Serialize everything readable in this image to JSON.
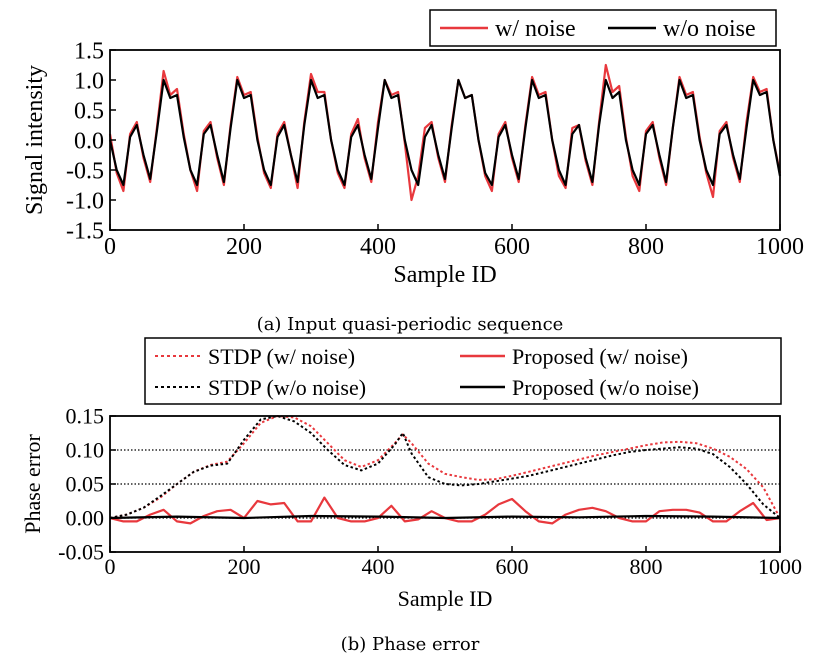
{
  "chart_data": [
    {
      "type": "line",
      "caption": "(a) Input quasi-periodic sequence",
      "xlabel": "Sample ID",
      "ylabel": "Signal intensity",
      "xlim": [
        0,
        1000
      ],
      "ylim": [
        -1.5,
        1.5
      ],
      "xticks": [
        0,
        200,
        400,
        600,
        800,
        1000
      ],
      "yticks": [
        -1.5,
        -1.0,
        -0.5,
        0.0,
        0.5,
        1.0,
        1.5
      ],
      "ytick_labels": [
        "-1.5",
        "-1.0",
        "-0.5",
        "0.0",
        "0.5",
        "1.0",
        "1.5"
      ],
      "grid": false,
      "legend_position": "top-right",
      "series": [
        {
          "name": "w/ noise",
          "color": "#e8383d",
          "style": "solid",
          "x": [
            0,
            10,
            20,
            30,
            40,
            50,
            60,
            70,
            80,
            90,
            100,
            110,
            120,
            130,
            140,
            150,
            160,
            170,
            180,
            190,
            200,
            210,
            220,
            230,
            240,
            250,
            260,
            270,
            280,
            290,
            300,
            310,
            320,
            330,
            340,
            350,
            360,
            370,
            380,
            390,
            400,
            410,
            420,
            430,
            440,
            450,
            460,
            470,
            480,
            490,
            500,
            510,
            520,
            530,
            540,
            550,
            560,
            570,
            580,
            590,
            600,
            610,
            620,
            630,
            640,
            650,
            660,
            670,
            680,
            690,
            700,
            710,
            720,
            730,
            740,
            750,
            760,
            770,
            780,
            790,
            800,
            810,
            820,
            830,
            840,
            850,
            860,
            870,
            880,
            890,
            900,
            910,
            920,
            930,
            940,
            950,
            960,
            970,
            980,
            990,
            1000
          ],
          "y": [
            0.1,
            -0.55,
            -0.85,
            0.1,
            0.3,
            -0.3,
            -0.7,
            0.2,
            1.15,
            0.75,
            0.85,
            0.1,
            -0.5,
            -0.85,
            0.15,
            0.3,
            -0.3,
            -0.75,
            0.25,
            1.05,
            0.75,
            0.8,
            0.05,
            -0.55,
            -0.8,
            0.1,
            0.3,
            -0.25,
            -0.8,
            0.3,
            1.1,
            0.8,
            0.8,
            0.0,
            -0.55,
            -0.8,
            0.1,
            0.35,
            -0.3,
            -0.7,
            0.3,
            1.0,
            0.75,
            0.8,
            -0.05,
            -1.0,
            -0.6,
            0.2,
            0.3,
            -0.3,
            -0.7,
            0.25,
            1.0,
            0.7,
            0.75,
            0.0,
            -0.6,
            -0.85,
            0.1,
            0.3,
            -0.3,
            -0.7,
            0.25,
            1.05,
            0.75,
            0.8,
            0.0,
            -0.6,
            -0.8,
            0.2,
            0.25,
            -0.35,
            -0.75,
            0.3,
            1.25,
            0.8,
            0.9,
            0.05,
            -0.6,
            -0.85,
            0.15,
            0.3,
            -0.3,
            -0.75,
            0.2,
            1.05,
            0.75,
            0.8,
            0.05,
            -0.55,
            -0.95,
            0.15,
            0.3,
            -0.3,
            -0.7,
            0.3,
            1.05,
            0.8,
            0.85,
            0.0,
            -0.55
          ]
        },
        {
          "name": "w/o noise",
          "color": "#000000",
          "style": "solid",
          "x": [
            0,
            10,
            20,
            30,
            40,
            50,
            60,
            70,
            80,
            90,
            100,
            110,
            120,
            130,
            140,
            150,
            160,
            170,
            180,
            190,
            200,
            210,
            220,
            230,
            240,
            250,
            260,
            270,
            280,
            290,
            300,
            310,
            320,
            330,
            340,
            350,
            360,
            370,
            380,
            390,
            400,
            410,
            420,
            430,
            440,
            450,
            460,
            470,
            480,
            490,
            500,
            510,
            520,
            530,
            540,
            550,
            560,
            570,
            580,
            590,
            600,
            610,
            620,
            630,
            640,
            650,
            660,
            670,
            680,
            690,
            700,
            710,
            720,
            730,
            740,
            750,
            760,
            770,
            780,
            790,
            800,
            810,
            820,
            830,
            840,
            850,
            860,
            870,
            880,
            890,
            900,
            910,
            920,
            930,
            940,
            950,
            960,
            970,
            980,
            990,
            1000
          ],
          "y": [
            0.0,
            -0.5,
            -0.75,
            0.05,
            0.25,
            -0.25,
            -0.65,
            0.15,
            1.0,
            0.7,
            0.75,
            0.05,
            -0.5,
            -0.75,
            0.1,
            0.25,
            -0.25,
            -0.7,
            0.2,
            1.0,
            0.7,
            0.75,
            0.0,
            -0.5,
            -0.75,
            0.05,
            0.25,
            -0.25,
            -0.7,
            0.25,
            1.0,
            0.7,
            0.75,
            0.0,
            -0.5,
            -0.75,
            0.05,
            0.25,
            -0.25,
            -0.65,
            0.2,
            1.0,
            0.7,
            0.75,
            0.0,
            -0.5,
            -0.75,
            0.05,
            0.25,
            -0.25,
            -0.65,
            0.2,
            1.0,
            0.7,
            0.75,
            0.0,
            -0.55,
            -0.75,
            0.05,
            0.25,
            -0.25,
            -0.65,
            0.2,
            1.0,
            0.7,
            0.75,
            0.0,
            -0.5,
            -0.75,
            0.1,
            0.25,
            -0.3,
            -0.7,
            0.25,
            1.0,
            0.7,
            0.8,
            0.0,
            -0.5,
            -0.75,
            0.1,
            0.25,
            -0.25,
            -0.7,
            0.2,
            1.0,
            0.7,
            0.75,
            0.0,
            -0.5,
            -0.75,
            0.1,
            0.25,
            -0.25,
            -0.65,
            0.2,
            1.0,
            0.75,
            0.8,
            0.0,
            -0.6
          ]
        }
      ]
    },
    {
      "type": "line",
      "caption": "(b) Phase error",
      "xlabel": "Sample ID",
      "ylabel": "Phase error",
      "xlim": [
        0,
        1000
      ],
      "ylim": [
        -0.05,
        0.15
      ],
      "xticks": [
        0,
        200,
        400,
        600,
        800,
        1000
      ],
      "yticks": [
        -0.05,
        0.0,
        0.05,
        0.1,
        0.15
      ],
      "ytick_labels": [
        "-0.05",
        "0.00",
        "0.05",
        "0.10",
        "0.15"
      ],
      "grid": true,
      "legend_position": "top, outside plot",
      "series": [
        {
          "name": "STDP (w/ noise)",
          "color": "#e8383d",
          "style": "dotted",
          "x": [
            0,
            25,
            50,
            75,
            100,
            125,
            150,
            175,
            200,
            225,
            250,
            275,
            300,
            325,
            350,
            375,
            400,
            425,
            437,
            450,
            475,
            500,
            525,
            550,
            575,
            600,
            625,
            650,
            675,
            700,
            725,
            750,
            775,
            800,
            825,
            850,
            875,
            900,
            925,
            950,
            975,
            1000
          ],
          "y": [
            0.0,
            0.005,
            0.015,
            0.03,
            0.05,
            0.068,
            0.078,
            0.083,
            0.11,
            0.14,
            0.15,
            0.148,
            0.135,
            0.11,
            0.085,
            0.075,
            0.085,
            0.11,
            0.123,
            0.11,
            0.08,
            0.065,
            0.06,
            0.056,
            0.057,
            0.062,
            0.068,
            0.074,
            0.08,
            0.086,
            0.092,
            0.097,
            0.102,
            0.107,
            0.111,
            0.112,
            0.11,
            0.102,
            0.09,
            0.072,
            0.045,
            0.0
          ]
        },
        {
          "name": "STDP (w/o noise)",
          "color": "#000000",
          "style": "dotted",
          "x": [
            0,
            25,
            50,
            75,
            100,
            125,
            150,
            175,
            200,
            225,
            250,
            275,
            300,
            325,
            350,
            375,
            400,
            425,
            437,
            450,
            475,
            500,
            525,
            550,
            575,
            600,
            625,
            650,
            675,
            700,
            725,
            750,
            775,
            800,
            825,
            850,
            875,
            900,
            925,
            950,
            975,
            1000
          ],
          "y": [
            0.0,
            0.005,
            0.015,
            0.032,
            0.05,
            0.068,
            0.077,
            0.08,
            0.115,
            0.145,
            0.15,
            0.142,
            0.125,
            0.1,
            0.078,
            0.07,
            0.08,
            0.108,
            0.125,
            0.095,
            0.06,
            0.05,
            0.048,
            0.05,
            0.054,
            0.058,
            0.062,
            0.068,
            0.074,
            0.08,
            0.086,
            0.092,
            0.097,
            0.1,
            0.102,
            0.104,
            0.102,
            0.094,
            0.075,
            0.05,
            0.02,
            0.0
          ]
        },
        {
          "name": "Proposed (w/ noise)",
          "color": "#e8383d",
          "style": "solid",
          "x": [
            0,
            20,
            40,
            60,
            80,
            100,
            120,
            140,
            160,
            180,
            200,
            220,
            240,
            260,
            280,
            300,
            320,
            340,
            360,
            380,
            400,
            420,
            440,
            460,
            480,
            500,
            520,
            540,
            560,
            580,
            600,
            620,
            640,
            660,
            680,
            700,
            720,
            740,
            760,
            780,
            800,
            820,
            840,
            860,
            880,
            900,
            920,
            940,
            960,
            980,
            1000
          ],
          "y": [
            0.0,
            -0.005,
            -0.005,
            0.005,
            0.012,
            -0.005,
            -0.008,
            0.003,
            0.01,
            0.012,
            0.0,
            0.025,
            0.02,
            0.022,
            -0.005,
            -0.005,
            0.03,
            0.0,
            -0.005,
            -0.005,
            0.0,
            0.018,
            -0.005,
            -0.002,
            0.01,
            0.0,
            -0.005,
            -0.005,
            0.005,
            0.02,
            0.028,
            0.01,
            -0.005,
            -0.008,
            0.005,
            0.012,
            0.015,
            0.01,
            0.0,
            -0.005,
            -0.005,
            0.01,
            0.012,
            0.012,
            0.008,
            -0.005,
            -0.005,
            0.01,
            0.022,
            -0.003,
            0.0
          ]
        },
        {
          "name": "Proposed (w/o noise)",
          "color": "#000000",
          "style": "solid",
          "x": [
            0,
            100,
            200,
            300,
            400,
            500,
            600,
            700,
            800,
            900,
            1000
          ],
          "y": [
            0.0,
            0.002,
            0.0,
            0.003,
            0.002,
            0.0,
            0.002,
            0.001,
            0.003,
            0.002,
            0.0
          ]
        }
      ]
    }
  ]
}
